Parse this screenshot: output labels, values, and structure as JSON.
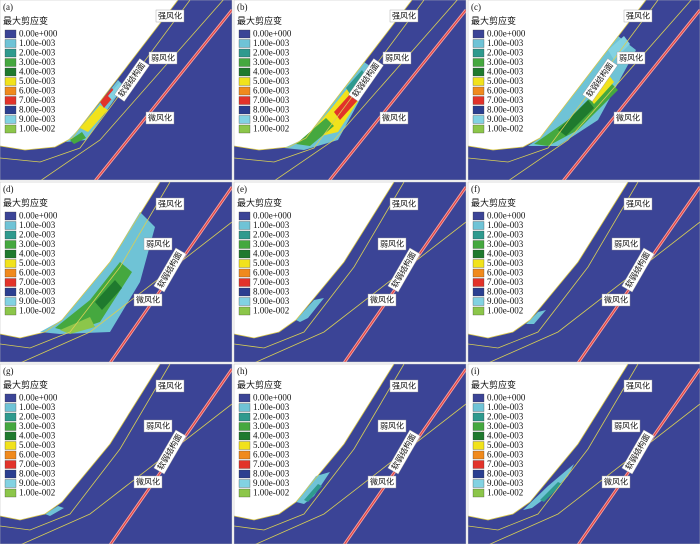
{
  "panels": [
    {
      "label": "(a)"
    },
    {
      "label": "(b)"
    },
    {
      "label": "(c)"
    },
    {
      "label": "(d)"
    },
    {
      "label": "(e)"
    },
    {
      "label": "(f)"
    },
    {
      "label": "(g)"
    },
    {
      "label": "(h)"
    },
    {
      "label": "(i)"
    }
  ],
  "legend": {
    "title": "最大剪应变",
    "items": [
      {
        "label": "0.00e+000",
        "color": "#3b4496"
      },
      {
        "label": "1.00e-003",
        "color": "#6fc3d6"
      },
      {
        "label": "2.00e-003",
        "color": "#2f9a8e"
      },
      {
        "label": "3.00e-003",
        "color": "#45a83f"
      },
      {
        "label": "4.00e-003",
        "color": "#1f7a2e"
      },
      {
        "label": "5.00e-003",
        "color": "#f1e21c"
      },
      {
        "label": "6.00e-003",
        "color": "#f08a1d"
      },
      {
        "label": "7.00e-003",
        "color": "#e2332a"
      },
      {
        "label": "8.00e-003",
        "color": "#2b3f90"
      },
      {
        "label": "9.00e-003",
        "color": "#82d2e2"
      },
      {
        "label": "1.00e-002",
        "color": "#8cc64a"
      }
    ]
  },
  "zones": {
    "strong": "强风化",
    "weak": "弱风化",
    "slight": "微风化",
    "fault": "软弱结构面"
  }
}
